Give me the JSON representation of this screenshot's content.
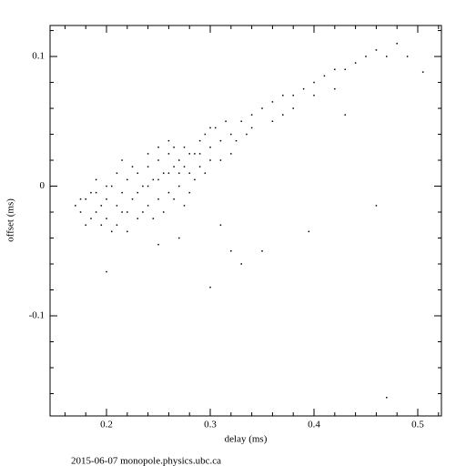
{
  "chart_data": {
    "type": "scatter",
    "xlabel": "delay (ms)",
    "ylabel": "offset (ms)",
    "footer": "2015-06-07 monopole.physics.ubc.ca",
    "color": "#000000",
    "xlim": [
      0.1456,
      0.5228
    ],
    "ylim": [
      -0.1772,
      0.1239
    ],
    "xticks": [
      0.2,
      0.3,
      0.4,
      0.5
    ],
    "yticks": [
      -0.1,
      0,
      0.1
    ],
    "xminorticks": [
      0.16,
      0.18,
      0.22,
      0.24,
      0.26,
      0.28,
      0.32,
      0.34,
      0.36,
      0.38,
      0.42,
      0.44,
      0.46,
      0.48,
      0.52
    ],
    "yminorticks": [
      -0.16,
      -0.14,
      -0.12,
      -0.08,
      -0.06,
      -0.04,
      -0.02,
      0.02,
      0.04,
      0.06,
      0.08,
      0.12
    ],
    "x": [
      0.17,
      0.175,
      0.18,
      0.185,
      0.19,
      0.19,
      0.195,
      0.2,
      0.2,
      0.205,
      0.21,
      0.21,
      0.215,
      0.22,
      0.22,
      0.225,
      0.23,
      0.23,
      0.235,
      0.24,
      0.24,
      0.245,
      0.25,
      0.25,
      0.255,
      0.26,
      0.26,
      0.265,
      0.27,
      0.27,
      0.275,
      0.28,
      0.285,
      0.29,
      0.29,
      0.295,
      0.3,
      0.305,
      0.31,
      0.32,
      0.33,
      0.34,
      0.35,
      0.36,
      0.37,
      0.38,
      0.39,
      0.4,
      0.41,
      0.42,
      0.43,
      0.44,
      0.45,
      0.46,
      0.47,
      0.48,
      0.49,
      0.505,
      0.36,
      0.38,
      0.42,
      0.4,
      0.37,
      0.2,
      0.3,
      0.32,
      0.33,
      0.35,
      0.395,
      0.47,
      0.46,
      0.43,
      0.27,
      0.25,
      0.31,
      0.18,
      0.19,
      0.2,
      0.205,
      0.21,
      0.215,
      0.22,
      0.225,
      0.23,
      0.235,
      0.24,
      0.24,
      0.245,
      0.25,
      0.25,
      0.255,
      0.26,
      0.265,
      0.265,
      0.27,
      0.275,
      0.275,
      0.28,
      0.28,
      0.285,
      0.29,
      0.295,
      0.3,
      0.3,
      0.31,
      0.315,
      0.32,
      0.325,
      0.335,
      0.34,
      0.215,
      0.195,
      0.185,
      0.175,
      0.26
    ],
    "values": [
      -0.015,
      -0.02,
      -0.01,
      -0.025,
      -0.005,
      -0.02,
      -0.015,
      -0.01,
      -0.025,
      0,
      -0.015,
      -0.03,
      -0.005,
      0.005,
      -0.02,
      -0.01,
      0.01,
      -0.025,
      0,
      0.015,
      -0.015,
      0.005,
      0.02,
      -0.01,
      0.01,
      0.025,
      -0.005,
      0.015,
      0.02,
      0,
      0.03,
      0.01,
      0.025,
      0.035,
      0.015,
      0.04,
      0.03,
      0.045,
      0.035,
      0.04,
      0.05,
      0.055,
      0.06,
      0.065,
      0.07,
      0.07,
      0.075,
      0.08,
      0.085,
      0.09,
      0.09,
      0.095,
      0.1,
      0.105,
      0.1,
      0.11,
      0.1,
      0.088,
      0.05,
      0.06,
      0.075,
      0.07,
      0.055,
      -0.066,
      -0.078,
      -0.05,
      -0.06,
      -0.05,
      -0.035,
      -0.163,
      -0.015,
      0.055,
      -0.04,
      -0.045,
      -0.03,
      -0.03,
      0.005,
      0,
      -0.035,
      0.01,
      -0.02,
      -0.035,
      0.015,
      -0.005,
      -0.02,
      0.025,
      0,
      -0.025,
      0.005,
      0.03,
      -0.02,
      0.01,
      -0.01,
      0.03,
      0.01,
      -0.015,
      0.015,
      0.025,
      -0.005,
      0.005,
      0.025,
      0.01,
      0.02,
      0.045,
      0.02,
      0.05,
      0.025,
      0.035,
      0.04,
      0.045,
      0.02,
      -0.03,
      -0.005,
      -0.01,
      0.035
    ]
  }
}
